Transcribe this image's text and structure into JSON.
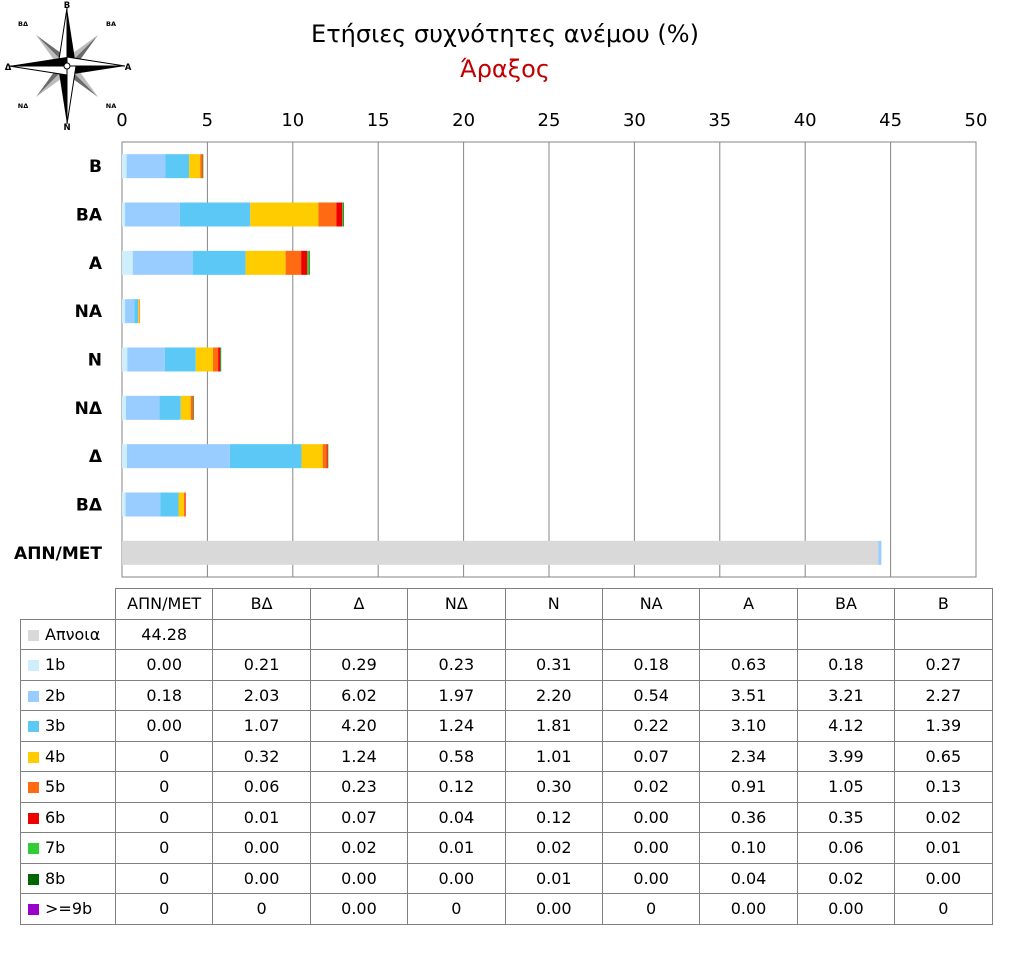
{
  "compass": {
    "labels": [
      "Β",
      "ΒΑ",
      "Α",
      "ΝΑ",
      "Ν",
      "ΝΔ",
      "Δ",
      "ΒΔ"
    ]
  },
  "chart_data": {
    "type": "bar",
    "orientation": "horizontal",
    "stacked": true,
    "title": "Ετήσιες συχνότητες ανέμου (%)",
    "subtitle": "Άραξος",
    "x_ticks": [
      "0",
      "5",
      "10",
      "15",
      "20",
      "25",
      "30",
      "35",
      "40",
      "45",
      "50"
    ],
    "xlim": [
      0,
      50
    ],
    "x_axis_position": "top",
    "grid": true,
    "legend_placement": "table-below",
    "categories": [
      "ΑΠΝ/ΜΕΤ",
      "ΒΔ",
      "Δ",
      "ΝΔ",
      "Ν",
      "ΝΑ",
      "Α",
      "ΒΑ",
      "Β"
    ],
    "category_order_top_to_bottom": [
      "Β",
      "ΒΑ",
      "Α",
      "ΝΑ",
      "Ν",
      "ΝΔ",
      "Δ",
      "ΒΔ",
      "ΑΠΝ/ΜΕΤ"
    ],
    "series": [
      {
        "name": "Απνοια",
        "color": "#d9d9d9",
        "values": [
          44.28,
          null,
          null,
          null,
          null,
          null,
          null,
          null,
          null
        ],
        "labels": [
          "44.28",
          "",
          "",
          "",
          "",
          "",
          "",
          "",
          ""
        ]
      },
      {
        "name": "1b",
        "color": "#cfeefb",
        "values": [
          0.0,
          0.21,
          0.29,
          0.23,
          0.31,
          0.18,
          0.63,
          0.18,
          0.27
        ],
        "labels": [
          "0.00",
          "0.21",
          "0.29",
          "0.23",
          "0.31",
          "0.18",
          "0.63",
          "0.18",
          "0.27"
        ]
      },
      {
        "name": "2b",
        "color": "#99ccff",
        "values": [
          0.18,
          2.03,
          6.02,
          1.97,
          2.2,
          0.54,
          3.51,
          3.21,
          2.27
        ],
        "labels": [
          "0.18",
          "2.03",
          "6.02",
          "1.97",
          "2.20",
          "0.54",
          "3.51",
          "3.21",
          "2.27"
        ]
      },
      {
        "name": "3b",
        "color": "#5bc8f5",
        "values": [
          0.0,
          1.07,
          4.2,
          1.24,
          1.81,
          0.22,
          3.1,
          4.12,
          1.39
        ],
        "labels": [
          "0.00",
          "1.07",
          "4.20",
          "1.24",
          "1.81",
          "0.22",
          "3.10",
          "4.12",
          "1.39"
        ]
      },
      {
        "name": "4b",
        "color": "#ffcc00",
        "values": [
          0,
          0.32,
          1.24,
          0.58,
          1.01,
          0.07,
          2.34,
          3.99,
          0.65
        ],
        "labels": [
          "0",
          "0.32",
          "1.24",
          "0.58",
          "1.01",
          "0.07",
          "2.34",
          "3.99",
          "0.65"
        ]
      },
      {
        "name": "5b",
        "color": "#ff6a13",
        "values": [
          0,
          0.06,
          0.23,
          0.12,
          0.3,
          0.02,
          0.91,
          1.05,
          0.13
        ],
        "labels": [
          "0",
          "0.06",
          "0.23",
          "0.12",
          "0.30",
          "0.02",
          "0.91",
          "1.05",
          "0.13"
        ]
      },
      {
        "name": "6b",
        "color": "#ee0000",
        "values": [
          0,
          0.01,
          0.07,
          0.04,
          0.12,
          0.0,
          0.36,
          0.35,
          0.02
        ],
        "labels": [
          "0",
          "0.01",
          "0.07",
          "0.04",
          "0.12",
          "0.00",
          "0.36",
          "0.35",
          "0.02"
        ]
      },
      {
        "name": "7b",
        "color": "#33cc33",
        "values": [
          0,
          0.0,
          0.02,
          0.01,
          0.02,
          0.0,
          0.1,
          0.06,
          0.01
        ],
        "labels": [
          "0",
          "0.00",
          "0.02",
          "0.01",
          "0.02",
          "0.00",
          "0.10",
          "0.06",
          "0.01"
        ]
      },
      {
        "name": "8b",
        "color": "#006600",
        "values": [
          0,
          0.0,
          0.0,
          0.0,
          0.01,
          0.0,
          0.04,
          0.02,
          0.0
        ],
        "labels": [
          "0",
          "0.00",
          "0.00",
          "0.00",
          "0.01",
          "0.00",
          "0.04",
          "0.02",
          "0.00"
        ]
      },
      {
        "name": ">=9b",
        "color": "#9900cc",
        "values": [
          0,
          0,
          0.0,
          0,
          0.0,
          0,
          0.0,
          0.0,
          0
        ],
        "labels": [
          "0",
          "0",
          "0.00",
          "0",
          "0.00",
          "0",
          "0.00",
          "0.00",
          "0"
        ]
      }
    ]
  }
}
